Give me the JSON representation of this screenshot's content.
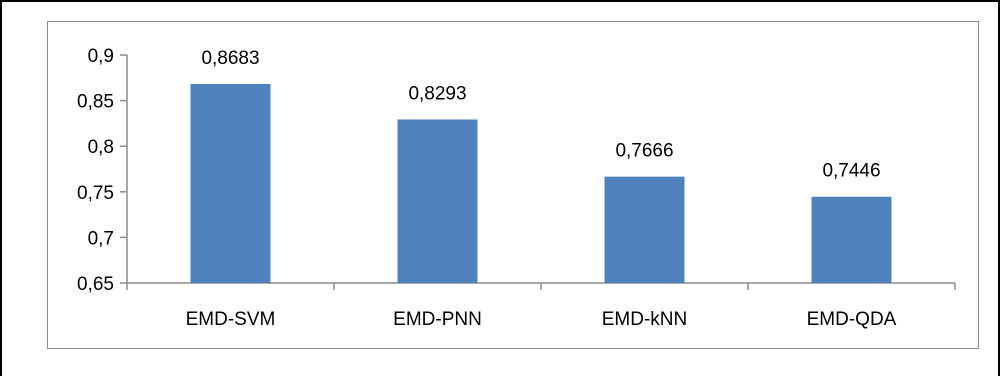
{
  "chart_data": {
    "type": "bar",
    "categories": [
      "EMD-SVM",
      "EMD-PNN",
      "EMD-kNN",
      "EMD-QDA"
    ],
    "values": [
      0.8683,
      0.8293,
      0.7666,
      0.7446
    ],
    "data_labels": [
      "0,8683",
      "0,8293",
      "0,7666",
      "0,7446"
    ],
    "y_ticks": [
      "0,65",
      "0,7",
      "0,75",
      "0,8",
      "0,85",
      "0,9"
    ],
    "y_tick_values": [
      0.65,
      0.7,
      0.75,
      0.8,
      0.85,
      0.9
    ],
    "ylim": [
      0.65,
      0.9
    ],
    "title": "",
    "xlabel": "",
    "ylabel": "",
    "grid": false,
    "legend": "none",
    "bar_color": "#4f81bd"
  }
}
